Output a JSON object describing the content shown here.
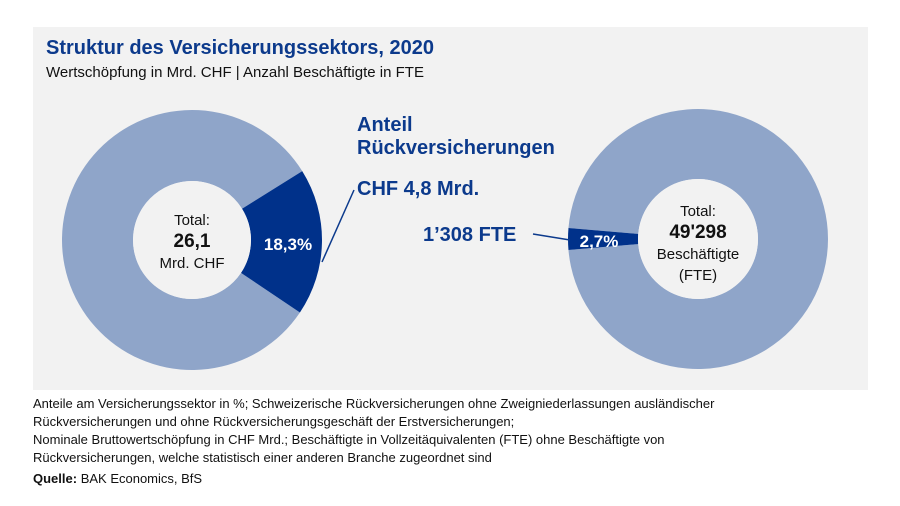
{
  "title": "Struktur des Versicherungssektors, 2020",
  "subtitle": "Wertschöpfung in Mrd. CHF | Anzahl Beschäftigte in FTE",
  "annotation": {
    "heading_line1": "Anteil",
    "heading_line2": "Rückversicherungen",
    "chf": "CHF 4,8 Mrd.",
    "fte": "1’308 FTE"
  },
  "colors": {
    "share": "#00318a",
    "rest": "#8fa5c9",
    "background": "#f2f2f2"
  },
  "chart_data": [
    {
      "type": "pie",
      "variant": "donut",
      "values": [
        18.3,
        81.7
      ],
      "slice_label": "18,3%",
      "center": {
        "line1": "Total:",
        "line2": "26,1",
        "line3": "Mrd. CHF"
      }
    },
    {
      "type": "pie",
      "variant": "donut",
      "values": [
        2.7,
        97.3
      ],
      "slice_label": "2,7%",
      "center": {
        "line1": "Total:",
        "line2": "49'298",
        "line3": "Beschäftigte",
        "line4": "(FTE)"
      }
    }
  ],
  "notes": [
    "Anteile am Versicherungssektor in %; Schweizerische Rückversicherungen ohne Zweigniederlassungen ausländischer",
    "Rückversicherungen und ohne Rückversicherungsgeschäft der Erstversicherungen;",
    "Nominale Bruttowertschöpfung in CHF Mrd.; Beschäftigte in Vollzeitäquivalenten (FTE) ohne Beschäftigte von",
    "Rückversicherungen, welche statistisch einer anderen Branche zugeordnet sind"
  ],
  "source": {
    "label": "Quelle:",
    "text": " BAK Economics, BfS"
  }
}
